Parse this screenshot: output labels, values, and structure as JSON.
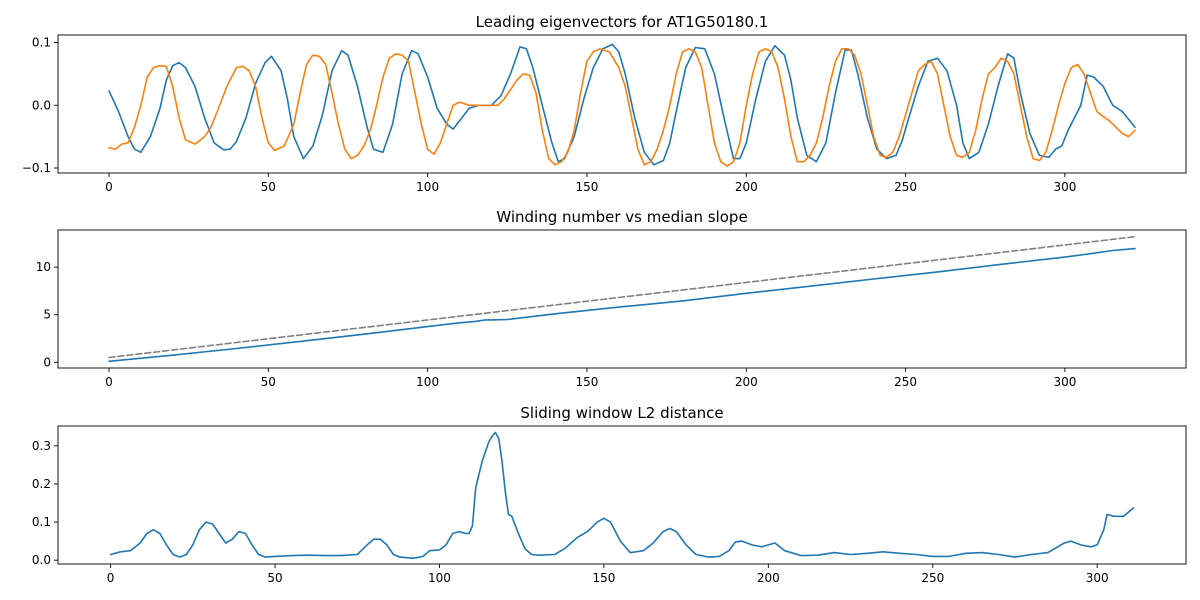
{
  "chart_data": [
    {
      "type": "line",
      "title": "Leading eigenvectors for AT1G50180.1",
      "xlim": [
        -16,
        338
      ],
      "ylim": [
        -0.108,
        0.112
      ],
      "xticks": [
        0,
        50,
        100,
        150,
        200,
        250,
        300
      ],
      "yticks": [
        -0.1,
        0.0,
        0.1
      ],
      "ytick_labels": [
        "−0.1",
        "0.0",
        "0.1"
      ],
      "grid": false,
      "series": [
        {
          "color": "#1f77b4",
          "x": [
            0,
            3,
            6,
            8,
            10,
            13,
            16,
            18,
            20,
            22,
            24,
            27,
            30,
            33,
            36,
            38,
            40,
            43,
            46,
            49,
            51,
            54,
            56,
            58,
            61,
            64,
            67,
            70,
            73,
            75,
            78,
            81,
            83,
            86,
            89,
            92,
            95,
            97,
            100,
            103,
            106,
            108,
            110,
            113,
            116,
            118,
            120,
            123,
            126,
            129,
            131,
            133,
            136,
            139,
            141,
            143,
            146,
            149,
            152,
            155,
            158,
            160,
            162,
            165,
            168,
            171,
            174,
            176,
            178,
            181,
            184,
            187,
            190,
            193,
            196,
            198,
            200,
            203,
            206,
            209,
            212,
            214,
            216,
            219,
            222,
            225,
            228,
            231,
            233,
            235,
            238,
            241,
            244,
            247,
            249,
            251,
            254,
            257,
            260,
            263,
            266,
            268,
            270,
            273,
            276,
            279,
            282,
            284,
            286,
            289,
            292,
            295,
            297,
            299,
            301,
            303,
            305,
            307,
            309,
            312,
            315,
            318,
            322
          ],
          "y": [
            0.023,
            -0.01,
            -0.05,
            -0.07,
            -0.075,
            -0.05,
            -0.005,
            0.04,
            0.063,
            0.068,
            0.06,
            0.03,
            -0.02,
            -0.06,
            -0.071,
            -0.07,
            -0.058,
            -0.02,
            0.035,
            0.068,
            0.078,
            0.055,
            0.01,
            -0.05,
            -0.085,
            -0.065,
            -0.015,
            0.055,
            0.087,
            0.08,
            0.03,
            -0.035,
            -0.07,
            -0.075,
            -0.03,
            0.05,
            0.087,
            0.082,
            0.045,
            -0.005,
            -0.03,
            -0.038,
            -0.025,
            -0.005,
            0.0,
            0.0,
            0.0,
            0.015,
            0.05,
            0.093,
            0.09,
            0.06,
            0.0,
            -0.06,
            -0.09,
            -0.085,
            -0.05,
            0.01,
            0.06,
            0.09,
            0.097,
            0.085,
            0.05,
            -0.02,
            -0.075,
            -0.095,
            -0.088,
            -0.06,
            -0.01,
            0.06,
            0.092,
            0.09,
            0.05,
            -0.02,
            -0.085,
            -0.085,
            -0.06,
            0.01,
            0.07,
            0.095,
            0.08,
            0.04,
            -0.02,
            -0.08,
            -0.09,
            -0.06,
            0.02,
            0.088,
            0.088,
            0.05,
            -0.02,
            -0.07,
            -0.085,
            -0.08,
            -0.055,
            -0.02,
            0.03,
            0.07,
            0.075,
            0.055,
            0.0,
            -0.06,
            -0.085,
            -0.075,
            -0.03,
            0.03,
            0.082,
            0.075,
            0.02,
            -0.045,
            -0.08,
            -0.083,
            -0.07,
            -0.065,
            -0.04,
            -0.02,
            0.0,
            0.048,
            0.045,
            0.03,
            0.0,
            -0.01,
            -0.035
          ]
        },
        {
          "color": "#ff7f0e",
          "x": [
            0,
            2,
            4,
            6,
            8,
            10,
            12,
            14,
            16,
            18,
            20,
            22,
            24,
            27,
            30,
            32,
            34,
            37,
            40,
            42,
            44,
            46,
            48,
            50,
            52,
            55,
            58,
            60,
            62,
            64,
            66,
            68,
            70,
            72,
            74,
            76,
            78,
            80,
            82,
            84,
            86,
            88,
            90,
            92,
            94,
            96,
            98,
            100,
            102,
            104,
            106,
            108,
            110,
            113,
            116,
            119,
            122,
            124,
            126,
            128,
            130,
            132,
            134,
            136,
            138,
            140,
            142,
            144,
            146,
            148,
            150,
            152,
            154,
            157,
            160,
            162,
            164,
            166,
            168,
            170,
            172,
            174,
            176,
            178,
            180,
            182,
            184,
            186,
            188,
            190,
            192,
            194,
            196,
            198,
            200,
            202,
            204,
            206,
            208,
            210,
            212,
            214,
            216,
            218,
            220,
            222,
            224,
            226,
            228,
            230,
            232,
            234,
            236,
            238,
            240,
            242,
            244,
            246,
            248,
            250,
            252,
            254,
            256,
            258,
            260,
            262,
            264,
            266,
            268,
            270,
            272,
            274,
            276,
            278,
            280,
            282,
            284,
            286,
            288,
            290,
            292,
            294,
            296,
            298,
            300,
            302,
            304,
            306,
            308,
            310,
            312,
            314,
            316,
            318,
            320,
            322
          ],
          "y": [
            -0.068,
            -0.07,
            -0.062,
            -0.06,
            -0.035,
            0.0,
            0.045,
            0.06,
            0.063,
            0.062,
            0.03,
            -0.02,
            -0.055,
            -0.062,
            -0.05,
            -0.035,
            -0.01,
            0.03,
            0.06,
            0.062,
            0.055,
            0.03,
            -0.02,
            -0.06,
            -0.072,
            -0.065,
            -0.03,
            0.02,
            0.065,
            0.08,
            0.078,
            0.065,
            0.02,
            -0.03,
            -0.07,
            -0.085,
            -0.08,
            -0.065,
            -0.04,
            0.0,
            0.045,
            0.075,
            0.082,
            0.08,
            0.07,
            0.02,
            -0.03,
            -0.07,
            -0.078,
            -0.06,
            -0.03,
            0.0,
            0.005,
            0.0,
            0.0,
            0.0,
            0.0,
            0.01,
            0.025,
            0.04,
            0.05,
            0.048,
            0.02,
            -0.04,
            -0.085,
            -0.095,
            -0.09,
            -0.075,
            -0.04,
            0.02,
            0.07,
            0.085,
            0.09,
            0.085,
            0.06,
            0.03,
            -0.02,
            -0.07,
            -0.095,
            -0.09,
            -0.07,
            -0.04,
            0.0,
            0.05,
            0.085,
            0.09,
            0.085,
            0.06,
            0.0,
            -0.06,
            -0.09,
            -0.097,
            -0.09,
            -0.06,
            0.0,
            0.05,
            0.085,
            0.09,
            0.085,
            0.06,
            0.01,
            -0.05,
            -0.09,
            -0.09,
            -0.08,
            -0.06,
            -0.02,
            0.03,
            0.07,
            0.09,
            0.09,
            0.08,
            0.05,
            0.0,
            -0.05,
            -0.08,
            -0.083,
            -0.075,
            -0.05,
            -0.015,
            0.02,
            0.055,
            0.065,
            0.07,
            0.05,
            0.0,
            -0.05,
            -0.08,
            -0.083,
            -0.075,
            -0.04,
            0.01,
            0.05,
            0.06,
            0.075,
            0.07,
            0.05,
            0.0,
            -0.05,
            -0.085,
            -0.088,
            -0.075,
            -0.04,
            0.0,
            0.035,
            0.06,
            0.065,
            0.05,
            0.02,
            -0.01,
            -0.018,
            -0.025,
            -0.035,
            -0.045,
            -0.05,
            -0.04
          ]
        }
      ]
    },
    {
      "type": "line",
      "title": "Winding number vs median slope",
      "xlim": [
        -16,
        338
      ],
      "ylim": [
        -0.6,
        13.9
      ],
      "xticks": [
        0,
        50,
        100,
        150,
        200,
        250,
        300
      ],
      "yticks": [
        0,
        5,
        10
      ],
      "ytick_labels": [
        "0",
        "5",
        "10"
      ],
      "grid": false,
      "series": [
        {
          "color": "#1f77b4",
          "dash": false,
          "x": [
            0,
            20,
            40,
            60,
            80,
            100,
            110,
            115,
            118,
            120,
            125,
            140,
            160,
            180,
            200,
            220,
            240,
            260,
            280,
            300,
            310,
            315,
            322
          ],
          "y": [
            0.1,
            0.75,
            1.45,
            2.2,
            2.95,
            3.75,
            4.15,
            4.3,
            4.45,
            4.45,
            4.5,
            5.1,
            5.8,
            6.45,
            7.25,
            8.0,
            8.75,
            9.5,
            10.3,
            11.05,
            11.5,
            11.75,
            11.95
          ]
        },
        {
          "color": "#808080",
          "dash": true,
          "x": [
            0,
            322
          ],
          "y": [
            0.5,
            13.2
          ]
        }
      ]
    },
    {
      "type": "line",
      "title": "Sliding window L2 distance",
      "xlim": [
        -16,
        327
      ],
      "ylim": [
        -0.01,
        0.352
      ],
      "xticks": [
        0,
        50,
        100,
        150,
        200,
        250,
        300
      ],
      "yticks": [
        0.0,
        0.1,
        0.2,
        0.3
      ],
      "ytick_labels": [
        "0.0",
        "0.1",
        "0.2",
        "0.3"
      ],
      "grid": false,
      "series": [
        {
          "color": "#1f77b4",
          "x": [
            0,
            3,
            6,
            9,
            11,
            13,
            15,
            17,
            19,
            21,
            23,
            25,
            27,
            29,
            31,
            33,
            35,
            37,
            39,
            41,
            43,
            45,
            47,
            50,
            55,
            60,
            65,
            70,
            75,
            78,
            80,
            82,
            84,
            86,
            88,
            92,
            95,
            97,
            100,
            102,
            104,
            106,
            108,
            109,
            110,
            111,
            113,
            115,
            116,
            117,
            118,
            119,
            120,
            121,
            122,
            124,
            126,
            128,
            130,
            135,
            138,
            142,
            145,
            148,
            150,
            152,
            155,
            158,
            162,
            165,
            168,
            170,
            172,
            175,
            178,
            182,
            185,
            188,
            190,
            192,
            195,
            198,
            200,
            202,
            205,
            210,
            215,
            220,
            225,
            230,
            235,
            240,
            245,
            250,
            255,
            260,
            265,
            270,
            275,
            280,
            285,
            290,
            292,
            295,
            298,
            300,
            302,
            303,
            305,
            308,
            311
          ],
          "y": [
            0.015,
            0.022,
            0.025,
            0.045,
            0.07,
            0.08,
            0.07,
            0.04,
            0.015,
            0.008,
            0.015,
            0.04,
            0.08,
            0.1,
            0.095,
            0.07,
            0.045,
            0.055,
            0.075,
            0.07,
            0.04,
            0.015,
            0.008,
            0.01,
            0.012,
            0.013,
            0.012,
            0.012,
            0.015,
            0.04,
            0.055,
            0.055,
            0.04,
            0.015,
            0.008,
            0.005,
            0.01,
            0.025,
            0.027,
            0.04,
            0.07,
            0.075,
            0.07,
            0.07,
            0.09,
            0.19,
            0.26,
            0.31,
            0.325,
            0.335,
            0.32,
            0.26,
            0.18,
            0.12,
            0.115,
            0.07,
            0.03,
            0.015,
            0.013,
            0.015,
            0.03,
            0.06,
            0.075,
            0.1,
            0.11,
            0.1,
            0.05,
            0.02,
            0.025,
            0.045,
            0.075,
            0.083,
            0.075,
            0.04,
            0.015,
            0.008,
            0.01,
            0.025,
            0.048,
            0.05,
            0.04,
            0.035,
            0.04,
            0.045,
            0.025,
            0.012,
            0.013,
            0.02,
            0.015,
            0.018,
            0.022,
            0.018,
            0.015,
            0.01,
            0.01,
            0.018,
            0.02,
            0.015,
            0.008,
            0.015,
            0.02,
            0.045,
            0.05,
            0.04,
            0.035,
            0.04,
            0.08,
            0.12,
            0.115,
            0.115,
            0.137
          ]
        }
      ]
    }
  ]
}
